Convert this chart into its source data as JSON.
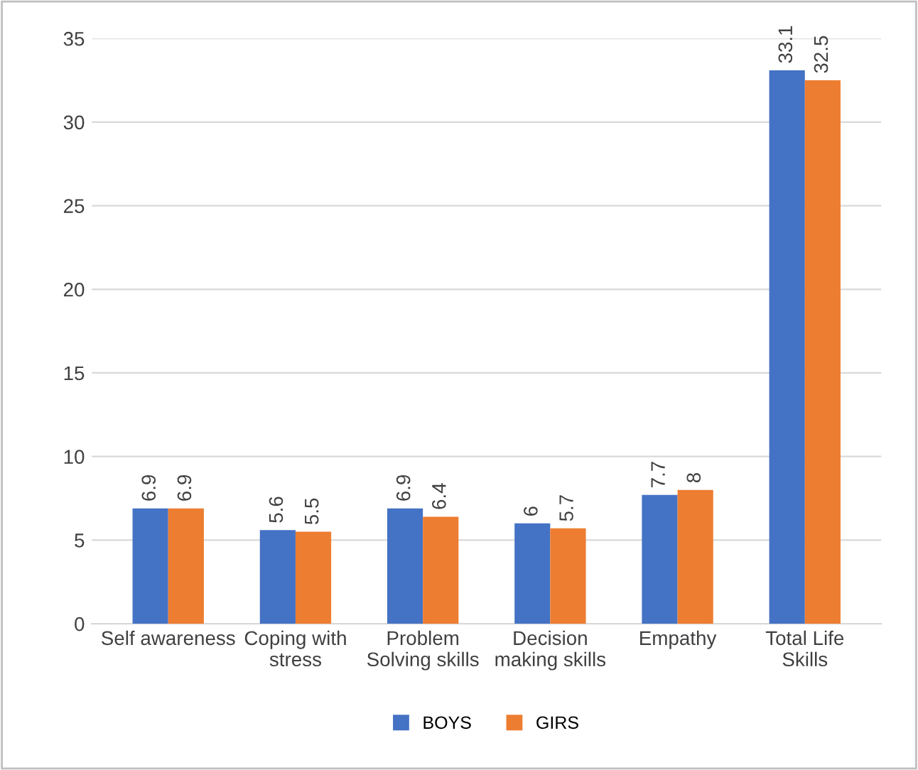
{
  "chart_data": {
    "type": "bar",
    "categories": [
      "Self awareness",
      "Coping with stress",
      "Problem Solving skills",
      "Decision making skills",
      "Empathy",
      "Total Life Skills"
    ],
    "series": [
      {
        "name": "BOYS",
        "color": "#4472c4",
        "values": [
          6.9,
          5.6,
          6.9,
          6,
          7.7,
          33.1
        ],
        "value_labels": [
          "6.9",
          "5.6",
          "6.9",
          "6",
          "7.7",
          "33.1"
        ]
      },
      {
        "name": "GIRS",
        "color": "#ed7d31",
        "values": [
          6.9,
          5.5,
          6.4,
          5.7,
          8,
          32.5
        ],
        "value_labels": [
          "6.9",
          "5.5",
          "6.4",
          "5.7",
          "8",
          "32.5"
        ]
      }
    ],
    "ylim": [
      0,
      35
    ],
    "yticks": [
      0,
      5,
      10,
      15,
      20,
      25,
      30,
      35
    ],
    "grid": "y",
    "legend": "bottom"
  }
}
